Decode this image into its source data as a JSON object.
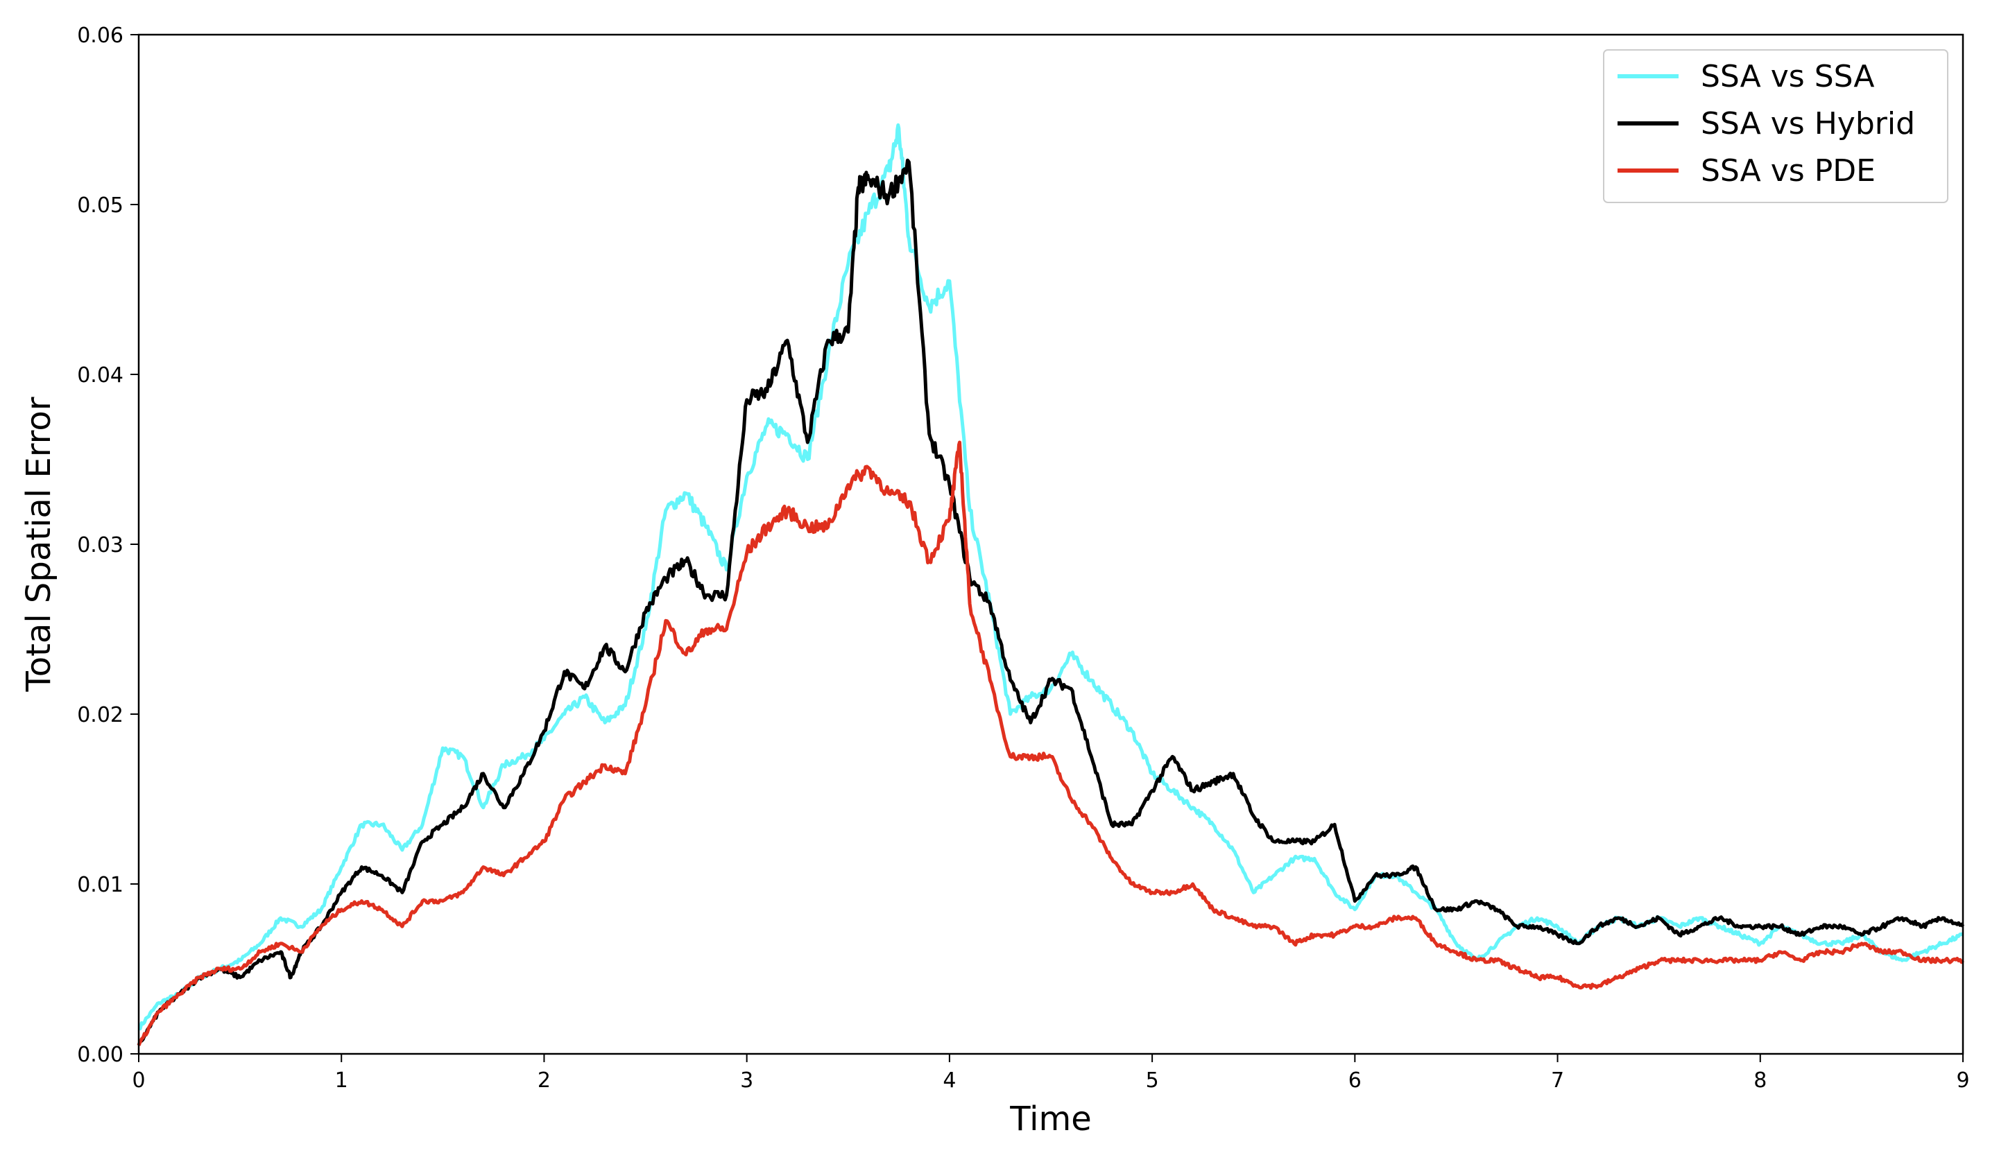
{
  "chart_data": {
    "type": "line",
    "title": "",
    "xlabel": "Time",
    "ylabel": "Total Spatial Error",
    "xlim": [
      0,
      9
    ],
    "ylim": [
      0,
      0.06
    ],
    "xticks": [
      0,
      1,
      2,
      3,
      4,
      5,
      6,
      7,
      8,
      9
    ],
    "xtick_labels": [
      "0",
      "1",
      "2",
      "3",
      "4",
      "5",
      "6",
      "7",
      "8",
      "9"
    ],
    "yticks": [
      0,
      0.01,
      0.02,
      0.03,
      0.04,
      0.05,
      0.06
    ],
    "ytick_labels": [
      "0.00",
      "0.01",
      "0.02",
      "0.03",
      "0.04",
      "0.05",
      "0.06"
    ],
    "grid": false,
    "legend_position": "top-right",
    "series": [
      {
        "name": "SSA vs SSA",
        "color": "#66f5fa",
        "x": [
          0,
          0.1,
          0.2,
          0.3,
          0.4,
          0.5,
          0.6,
          0.7,
          0.8,
          0.9,
          1.0,
          1.1,
          1.2,
          1.3,
          1.4,
          1.5,
          1.6,
          1.7,
          1.8,
          1.9,
          2.0,
          2.1,
          2.2,
          2.3,
          2.4,
          2.5,
          2.6,
          2.7,
          2.8,
          2.9,
          3.0,
          3.1,
          3.2,
          3.3,
          3.4,
          3.5,
          3.6,
          3.7,
          3.75,
          3.8,
          3.9,
          4.0,
          4.1,
          4.2,
          4.3,
          4.4,
          4.5,
          4.6,
          4.7,
          4.8,
          4.9,
          5.0,
          5.1,
          5.2,
          5.3,
          5.4,
          5.5,
          5.6,
          5.7,
          5.8,
          5.9,
          6.0,
          6.1,
          6.2,
          6.3,
          6.4,
          6.5,
          6.6,
          6.7,
          6.8,
          6.9,
          7.0,
          7.1,
          7.2,
          7.3,
          7.4,
          7.5,
          7.6,
          7.7,
          7.8,
          7.9,
          8.0,
          8.1,
          8.2,
          8.3,
          8.4,
          8.5,
          8.6,
          8.7,
          8.8,
          8.9,
          9.0
        ],
        "y": [
          0.0015,
          0.003,
          0.0035,
          0.0045,
          0.005,
          0.0055,
          0.0065,
          0.008,
          0.0075,
          0.0085,
          0.011,
          0.0135,
          0.0135,
          0.012,
          0.0135,
          0.018,
          0.0175,
          0.0145,
          0.017,
          0.0175,
          0.0185,
          0.02,
          0.021,
          0.0195,
          0.0205,
          0.025,
          0.032,
          0.033,
          0.031,
          0.0285,
          0.034,
          0.037,
          0.0365,
          0.035,
          0.041,
          0.0465,
          0.0495,
          0.052,
          0.0545,
          0.048,
          0.044,
          0.0455,
          0.032,
          0.0265,
          0.02,
          0.021,
          0.0215,
          0.0235,
          0.022,
          0.0205,
          0.019,
          0.0165,
          0.0155,
          0.0145,
          0.0135,
          0.012,
          0.0095,
          0.0105,
          0.0115,
          0.0115,
          0.0095,
          0.0085,
          0.0105,
          0.0105,
          0.0095,
          0.0085,
          0.0065,
          0.0055,
          0.0065,
          0.0075,
          0.008,
          0.0075,
          0.0065,
          0.0075,
          0.008,
          0.0075,
          0.008,
          0.0075,
          0.008,
          0.0075,
          0.007,
          0.0065,
          0.0075,
          0.007,
          0.0065,
          0.0065,
          0.007,
          0.006,
          0.0055,
          0.006,
          0.0065,
          0.007
        ]
      },
      {
        "name": "SSA vs Hybrid",
        "color": "#000000",
        "x": [
          0,
          0.1,
          0.2,
          0.3,
          0.4,
          0.5,
          0.6,
          0.7,
          0.75,
          0.8,
          0.9,
          1.0,
          1.1,
          1.2,
          1.3,
          1.4,
          1.5,
          1.6,
          1.7,
          1.8,
          1.9,
          2.0,
          2.1,
          2.2,
          2.3,
          2.4,
          2.5,
          2.6,
          2.7,
          2.8,
          2.9,
          3.0,
          3.1,
          3.2,
          3.3,
          3.4,
          3.5,
          3.55,
          3.6,
          3.7,
          3.8,
          3.9,
          4.0,
          4.1,
          4.2,
          4.3,
          4.4,
          4.5,
          4.6,
          4.7,
          4.8,
          4.9,
          5.0,
          5.1,
          5.2,
          5.3,
          5.4,
          5.5,
          5.6,
          5.7,
          5.8,
          5.9,
          6.0,
          6.1,
          6.2,
          6.3,
          6.4,
          6.5,
          6.6,
          6.7,
          6.8,
          6.9,
          7.0,
          7.1,
          7.2,
          7.3,
          7.4,
          7.5,
          7.6,
          7.7,
          7.8,
          7.9,
          8.0,
          8.1,
          8.2,
          8.3,
          8.4,
          8.5,
          8.6,
          8.7,
          8.8,
          8.9,
          9.0
        ],
        "y": [
          0.0005,
          0.0025,
          0.0035,
          0.0045,
          0.005,
          0.0045,
          0.0055,
          0.006,
          0.0045,
          0.006,
          0.0075,
          0.0095,
          0.011,
          0.0105,
          0.0095,
          0.0125,
          0.0135,
          0.0145,
          0.0165,
          0.0145,
          0.0165,
          0.019,
          0.0225,
          0.0215,
          0.024,
          0.0225,
          0.026,
          0.028,
          0.029,
          0.027,
          0.027,
          0.0385,
          0.039,
          0.042,
          0.036,
          0.042,
          0.0425,
          0.051,
          0.0515,
          0.0505,
          0.0525,
          0.0365,
          0.0335,
          0.028,
          0.0265,
          0.022,
          0.0195,
          0.022,
          0.0215,
          0.0175,
          0.0135,
          0.0135,
          0.0155,
          0.0175,
          0.0155,
          0.016,
          0.0165,
          0.014,
          0.0125,
          0.0125,
          0.0125,
          0.0135,
          0.009,
          0.0105,
          0.0105,
          0.011,
          0.0085,
          0.0085,
          0.009,
          0.0085,
          0.0075,
          0.0075,
          0.007,
          0.0065,
          0.0075,
          0.008,
          0.0075,
          0.008,
          0.007,
          0.0075,
          0.008,
          0.0075,
          0.0075,
          0.0075,
          0.007,
          0.0075,
          0.0075,
          0.007,
          0.0075,
          0.008,
          0.0075,
          0.008,
          0.0075
        ]
      },
      {
        "name": "SSA vs PDE",
        "color": "#e0301e",
        "x": [
          0,
          0.1,
          0.2,
          0.3,
          0.4,
          0.5,
          0.6,
          0.7,
          0.8,
          0.9,
          1.0,
          1.1,
          1.2,
          1.3,
          1.4,
          1.5,
          1.6,
          1.7,
          1.8,
          1.9,
          2.0,
          2.1,
          2.2,
          2.3,
          2.4,
          2.5,
          2.6,
          2.7,
          2.8,
          2.9,
          3.0,
          3.1,
          3.2,
          3.3,
          3.4,
          3.5,
          3.6,
          3.7,
          3.8,
          3.9,
          4.0,
          4.05,
          4.1,
          4.2,
          4.3,
          4.4,
          4.5,
          4.6,
          4.7,
          4.8,
          4.9,
          5.0,
          5.1,
          5.2,
          5.3,
          5.4,
          5.5,
          5.6,
          5.7,
          5.8,
          5.9,
          6.0,
          6.1,
          6.2,
          6.3,
          6.4,
          6.5,
          6.6,
          6.7,
          6.8,
          6.9,
          7.0,
          7.1,
          7.2,
          7.3,
          7.4,
          7.5,
          7.6,
          7.7,
          7.8,
          7.9,
          8.0,
          8.1,
          8.2,
          8.3,
          8.4,
          8.5,
          8.6,
          8.7,
          8.8,
          8.9,
          9.0
        ],
        "y": [
          0.0005,
          0.0025,
          0.0035,
          0.0045,
          0.005,
          0.005,
          0.006,
          0.0065,
          0.006,
          0.0075,
          0.0085,
          0.009,
          0.0085,
          0.0075,
          0.009,
          0.009,
          0.0095,
          0.011,
          0.0105,
          0.0115,
          0.0125,
          0.015,
          0.016,
          0.017,
          0.0165,
          0.0205,
          0.0255,
          0.0235,
          0.025,
          0.025,
          0.0295,
          0.031,
          0.032,
          0.031,
          0.031,
          0.0335,
          0.0345,
          0.033,
          0.0325,
          0.029,
          0.0315,
          0.036,
          0.0265,
          0.022,
          0.0175,
          0.0175,
          0.0175,
          0.015,
          0.0135,
          0.0115,
          0.01,
          0.0095,
          0.0095,
          0.01,
          0.0085,
          0.008,
          0.0075,
          0.0075,
          0.0065,
          0.007,
          0.007,
          0.0075,
          0.0075,
          0.008,
          0.008,
          0.0065,
          0.006,
          0.0055,
          0.0055,
          0.005,
          0.0045,
          0.0045,
          0.004,
          0.004,
          0.0045,
          0.005,
          0.0055,
          0.0055,
          0.0055,
          0.0055,
          0.0055,
          0.0055,
          0.006,
          0.0055,
          0.006,
          0.006,
          0.0065,
          0.006,
          0.006,
          0.0055,
          0.0055,
          0.0055
        ]
      }
    ]
  }
}
